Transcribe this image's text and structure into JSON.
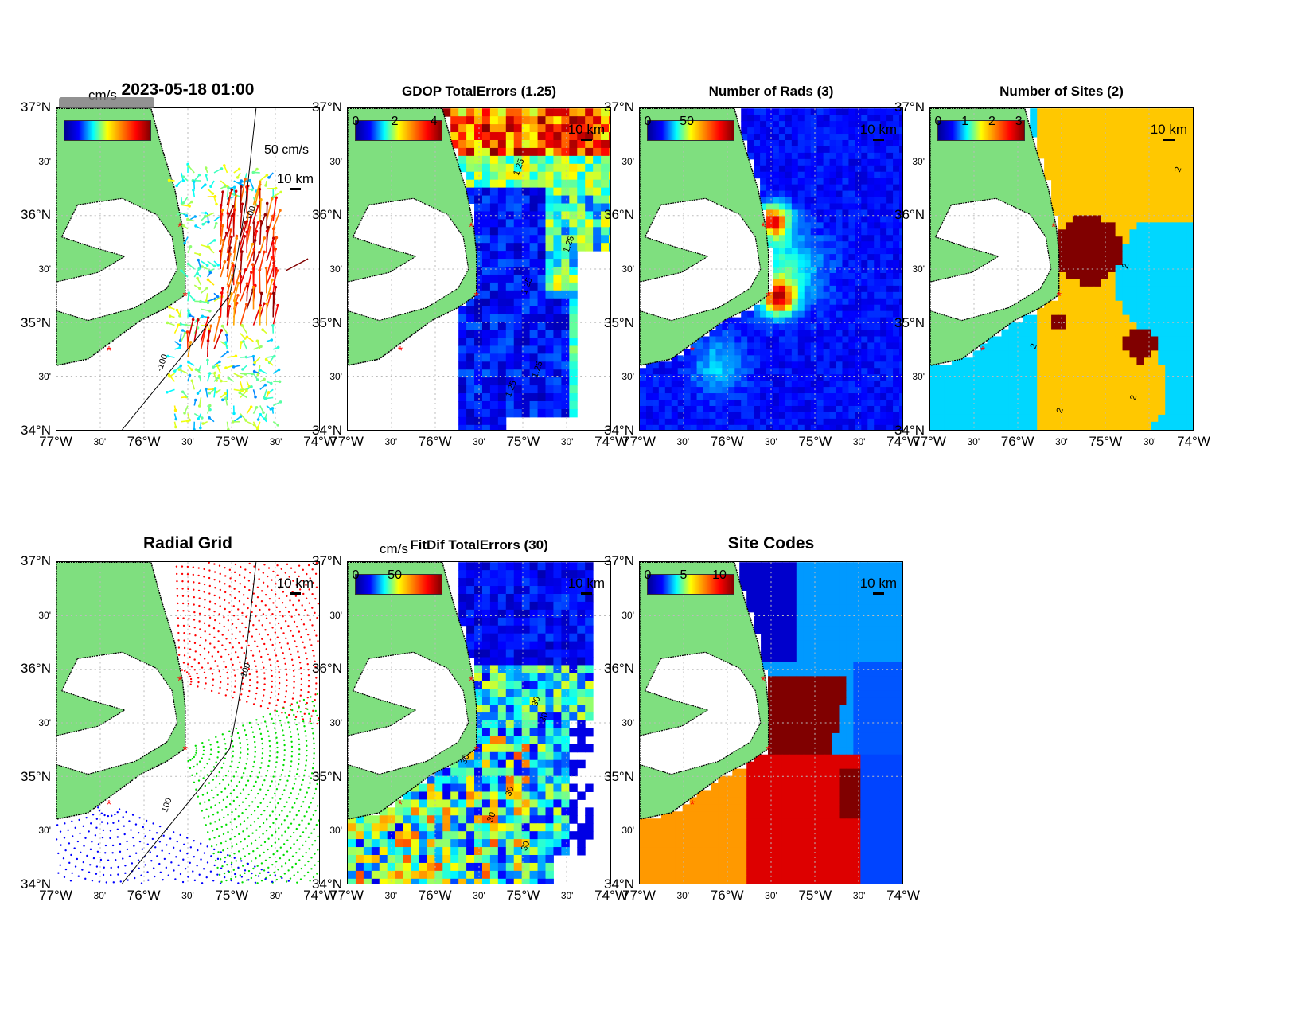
{
  "axes": {
    "lat_ticks": [
      "37°N",
      "30'",
      "36°N",
      "30'",
      "35°N",
      "30'",
      "34°N"
    ],
    "lon_ticks": [
      "77°W",
      "30'",
      "76°W",
      "30'",
      "75°W",
      "30'",
      "74°W"
    ],
    "lat_range": [
      34,
      37
    ],
    "lon_range": [
      -77,
      -74
    ]
  },
  "colors": {
    "land": "#7fdf7f",
    "site_marker": "#ff0000"
  },
  "panels": [
    {
      "id": "p1",
      "title": "2023-05-18 01:00",
      "colorbar_unit": "cm/s",
      "scale_label": "10 km",
      "vector_label": "50 cm/s",
      "contour_labels": [
        "100",
        "-100"
      ]
    },
    {
      "id": "p2",
      "title": "GDOP TotalErrors (1.25)",
      "colorbar_ticks": [
        "0",
        "2",
        "4"
      ],
      "scale_label": "10 km",
      "contour_labels": [
        "1.25",
        "1.25",
        "1.25",
        "1.25",
        "1.25"
      ]
    },
    {
      "id": "p3",
      "title": "Number of Rads (3)",
      "colorbar_ticks": [
        "0",
        "50"
      ],
      "scale_label": "10 km"
    },
    {
      "id": "p4",
      "title": "Number of Sites (2)",
      "colorbar_ticks": [
        "0",
        "1",
        "2",
        "3"
      ],
      "scale_label": "10 km",
      "contour_labels": [
        "2",
        "2",
        "2",
        "2",
        "2"
      ]
    },
    {
      "id": "p5",
      "title": "Radial Grid",
      "scale_label": "10 km",
      "contour_labels": [
        "100",
        "100"
      ]
    },
    {
      "id": "p6",
      "title": "FitDif TotalErrors (30)",
      "colorbar_unit": "cm/s",
      "colorbar_ticks": [
        "0",
        "50"
      ],
      "scale_label": "10 km",
      "contour_labels": [
        "30",
        "30",
        "30",
        "30",
        "30",
        "30"
      ]
    },
    {
      "id": "p7",
      "title": "Site Codes",
      "colorbar_ticks": [
        "0",
        "5",
        "10"
      ],
      "scale_label": "10 km"
    }
  ]
}
